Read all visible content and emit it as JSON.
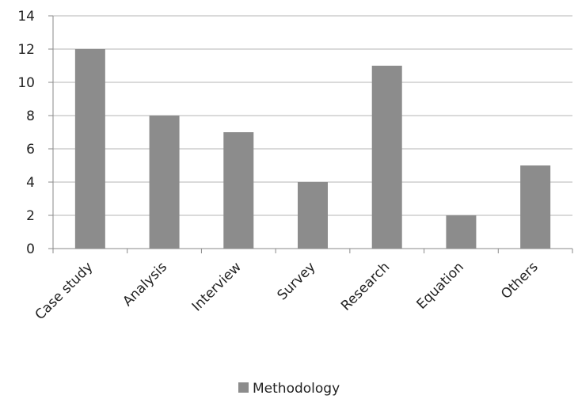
{
  "chart_data": {
    "type": "bar",
    "categories": [
      "Case study",
      "Analysis",
      "Interview",
      "Survey",
      "Research",
      "Equation",
      "Others"
    ],
    "series": [
      {
        "name": "Methodology",
        "values": [
          12,
          8,
          7,
          4,
          11,
          2,
          5
        ],
        "color": "#8c8c8c"
      }
    ],
    "title": "",
    "xlabel": "",
    "ylabel": "",
    "ylim": [
      0,
      14
    ],
    "yticks": [
      0,
      2,
      4,
      6,
      8,
      10,
      12,
      14
    ],
    "grid": true,
    "legend": "bottom-center",
    "colors": {
      "bar": "#8c8c8c",
      "grid": "#b5b5b5",
      "axis": "#8a8a8a",
      "text": "#222222"
    }
  }
}
